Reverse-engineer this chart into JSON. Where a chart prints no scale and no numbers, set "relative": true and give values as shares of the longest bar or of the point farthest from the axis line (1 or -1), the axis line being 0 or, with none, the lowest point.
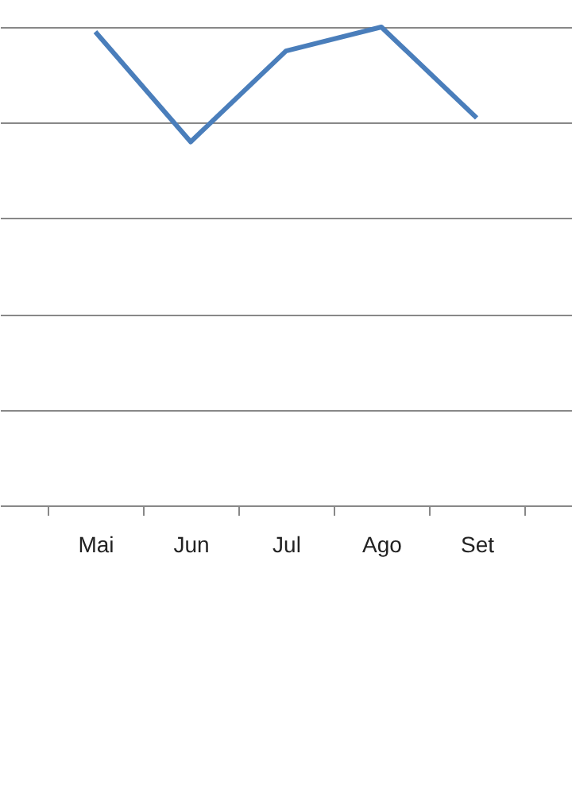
{
  "chart_data": {
    "type": "line",
    "categories": [
      "Mai",
      "Jun",
      "Jul",
      "Ago",
      "Set"
    ],
    "relative": true,
    "grid": "y",
    "series": [
      {
        "color": "#4a7ebb",
        "values": [
          0.99,
          0.76,
          0.95,
          1.0,
          0.81
        ]
      }
    ]
  }
}
